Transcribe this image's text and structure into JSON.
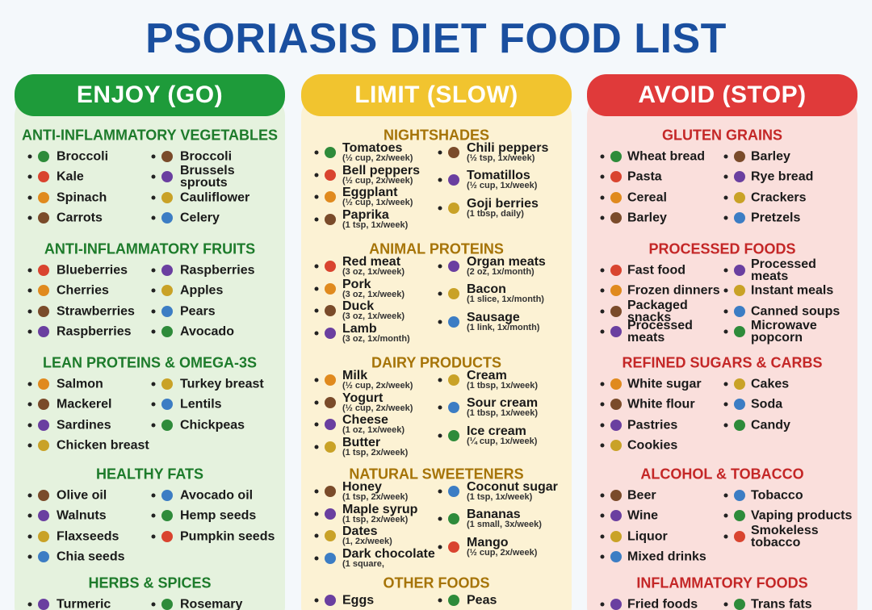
{
  "title": "PSORIASIS DIET FOOD LIST",
  "columns": [
    {
      "header": "ENJOY (GO)",
      "sections": [
        {
          "title": "ANTI-INFLAMMATORY VEGETABLES",
          "left": [
            {
              "name": "Broccoli"
            },
            {
              "name": "Kale"
            },
            {
              "name": "Spinach"
            },
            {
              "name": "Carrots"
            }
          ],
          "right": [
            {
              "name": "Broccoli"
            },
            {
              "name": "Brussels sprouts"
            },
            {
              "name": "Cauliflower"
            },
            {
              "name": "Celery"
            }
          ]
        },
        {
          "title": "ANTI-INFLAMMATORY FRUITS",
          "left": [
            {
              "name": "Blueberries"
            },
            {
              "name": "Cherries"
            },
            {
              "name": "Strawberries"
            },
            {
              "name": "Raspberries"
            }
          ],
          "right": [
            {
              "name": "Raspberries"
            },
            {
              "name": "Apples"
            },
            {
              "name": "Pears"
            },
            {
              "name": "Avocado"
            }
          ]
        },
        {
          "title": "LEAN PROTEINS & OMEGA-3S",
          "left": [
            {
              "name": "Salmon"
            },
            {
              "name": "Mackerel"
            },
            {
              "name": "Sardines"
            },
            {
              "name": "Chicken breast"
            }
          ],
          "right": [
            {
              "name": "Turkey breast"
            },
            {
              "name": "Lentils"
            },
            {
              "name": "Chickpeas"
            }
          ]
        },
        {
          "title": "HEALTHY FATS",
          "left": [
            {
              "name": "Olive oil"
            },
            {
              "name": "Walnuts"
            },
            {
              "name": "Flaxseeds"
            },
            {
              "name": "Chia seeds"
            }
          ],
          "right": [
            {
              "name": "Avocado oil"
            },
            {
              "name": "Hemp seeds"
            },
            {
              "name": "Pumpkin seeds"
            }
          ]
        },
        {
          "title": "HERBS & SPICES",
          "left": [
            {
              "name": "Turmeric"
            }
          ],
          "right": [
            {
              "name": "Rosemary"
            }
          ]
        }
      ]
    },
    {
      "header": "LIMIT (SLOW)",
      "sections": [
        {
          "title": "NIGHTSHADES",
          "left": [
            {
              "name": "Tomatoes",
              "note": "(½ cup, 2x/week)"
            },
            {
              "name": "Bell peppers",
              "note": "(½ cup, 2x/week)"
            },
            {
              "name": "Eggplant",
              "note": "(½ cup, 1x/week)"
            },
            {
              "name": "Paprika",
              "note": "(1 tsp, 1x/week)"
            }
          ],
          "right": [
            {
              "name": "Chili peppers",
              "note": "(½ tsp, 1x/week)"
            },
            {
              "name": "Tomatillos",
              "note": "(½ cup, 1x/week)"
            },
            {
              "name": "Goji berries",
              "note": "(1 tbsp, daily)"
            }
          ]
        },
        {
          "title": "ANIMAL PROTEINS",
          "left": [
            {
              "name": "Red meat",
              "note": "(3 oz, 1x/week)"
            },
            {
              "name": "Pork",
              "note": "(3 oz, 1x/week)"
            },
            {
              "name": "Duck",
              "note": "(3 oz, 1x/week)"
            },
            {
              "name": "Lamb",
              "note": "(3 oz, 1x/month)"
            }
          ],
          "right": [
            {
              "name": "Organ meats",
              "note": "(2 oz, 1x/month)"
            },
            {
              "name": "Bacon",
              "note": "(1 slice, 1x/month)"
            },
            {
              "name": "Sausage",
              "note": "(1 link, 1x/month)"
            }
          ]
        },
        {
          "title": "DAIRY PRODUCTS",
          "left": [
            {
              "name": "Milk",
              "note": "(½ cup, 2x/week)"
            },
            {
              "name": "Yogurt",
              "note": "(½ cup, 2x/week)"
            },
            {
              "name": "Cheese",
              "note": "(1 oz, 1x/week)"
            },
            {
              "name": "Butter",
              "note": "(1 tsp, 2x/week)"
            }
          ],
          "right": [
            {
              "name": "Cream",
              "note": "(1 tbsp, 1x/week)"
            },
            {
              "name": "Sour cream",
              "note": "(1 tbsp, 1x/week)"
            },
            {
              "name": "Ice cream",
              "note": "(¼ cup, 1x/week)"
            }
          ]
        },
        {
          "title": "NATURAL SWEETENERS",
          "left": [
            {
              "name": "Honey",
              "note": "(1 tsp, 2x/week)"
            },
            {
              "name": "Maple syrup",
              "note": "(1 tsp, 2x/week)"
            },
            {
              "name": "Dates",
              "note": "(1, 2x/week)"
            },
            {
              "name": "Dark chocolate",
              "note": "(1 square,"
            }
          ],
          "right": [
            {
              "name": "Coconut sugar",
              "note": "(1 tsp, 1x/week)"
            },
            {
              "name": "Bananas",
              "note": "(1 small, 3x/week)"
            },
            {
              "name": "Mango",
              "note": "(½ cup, 2x/week)"
            }
          ]
        },
        {
          "title": "OTHER FOODS",
          "left": [
            {
              "name": "Eggs"
            }
          ],
          "right": [
            {
              "name": "Peas"
            }
          ]
        }
      ]
    },
    {
      "header": "AVOID (STOP)",
      "sections": [
        {
          "title": "GLUTEN GRAINS",
          "left": [
            {
              "name": "Wheat bread"
            },
            {
              "name": "Pasta"
            },
            {
              "name": "Cereal"
            },
            {
              "name": "Barley"
            }
          ],
          "right": [
            {
              "name": "Barley"
            },
            {
              "name": "Rye bread"
            },
            {
              "name": "Crackers"
            },
            {
              "name": "Pretzels"
            }
          ]
        },
        {
          "title": "PROCESSED FOODS",
          "left": [
            {
              "name": "Fast food"
            },
            {
              "name": "Frozen dinners"
            },
            {
              "name": "Packaged snacks"
            },
            {
              "name": "Processed meats"
            }
          ],
          "right": [
            {
              "name": "Processed meats"
            },
            {
              "name": "Instant meals"
            },
            {
              "name": "Canned soups"
            },
            {
              "name": "Microwave popcorn"
            }
          ]
        },
        {
          "title": "REFINED SUGARS & CARBS",
          "left": [
            {
              "name": "White sugar"
            },
            {
              "name": "White flour"
            },
            {
              "name": "Pastries"
            },
            {
              "name": "Cookies"
            }
          ],
          "right": [
            {
              "name": "Cakes"
            },
            {
              "name": "Soda"
            },
            {
              "name": "Candy"
            }
          ]
        },
        {
          "title": "ALCOHOL & TOBACCO",
          "left": [
            {
              "name": "Beer"
            },
            {
              "name": "Wine"
            },
            {
              "name": "Liquor"
            },
            {
              "name": "Mixed drinks"
            }
          ],
          "right": [
            {
              "name": "Tobacco"
            },
            {
              "name": "Vaping products"
            },
            {
              "name": "Smokeless tobacco"
            }
          ]
        },
        {
          "title": "INFLAMMATORY FOODS",
          "left": [
            {
              "name": "Fried foods"
            }
          ],
          "right": [
            {
              "name": "Trans fats"
            }
          ]
        }
      ]
    }
  ]
}
